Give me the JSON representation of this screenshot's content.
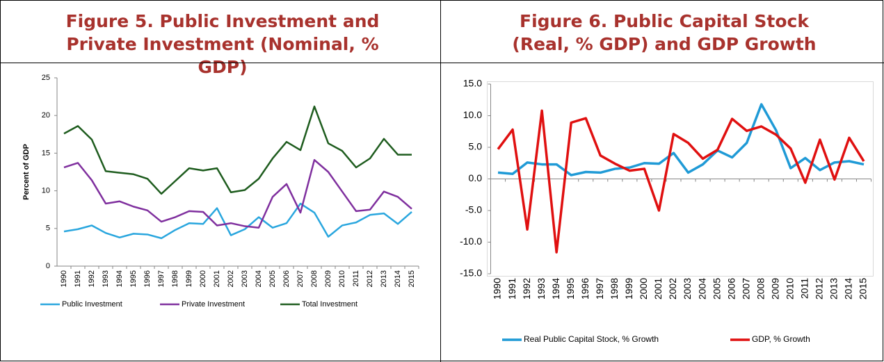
{
  "chart_data": [
    {
      "type": "line",
      "title": "Figure 5. Public Investment and Private Investment (Nominal, % GDP)",
      "ylabel": "Percent of GDP",
      "categories": [
        "1990",
        "1991",
        "1992",
        "1993",
        "1994",
        "1995",
        "1996",
        "1997",
        "1998",
        "1999",
        "2000",
        "2001",
        "2002",
        "2003",
        "2004",
        "2005",
        "2006",
        "2007",
        "2008",
        "2009",
        "2010",
        "2011",
        "2012",
        "2013",
        "2014",
        "2015"
      ],
      "ylim": [
        0,
        25
      ],
      "yticks": [
        0,
        5,
        10,
        15,
        20,
        25
      ],
      "grid": false,
      "legend": "bottom",
      "series": [
        {
          "name": "Public Investment",
          "color": "#29a6de",
          "values": [
            4.6,
            4.9,
            5.4,
            4.4,
            3.8,
            4.3,
            4.2,
            3.7,
            4.8,
            5.7,
            5.6,
            7.7,
            4.1,
            4.9,
            6.5,
            5.1,
            5.7,
            8.3,
            7.1,
            3.9,
            5.4,
            5.8,
            6.8,
            7.0,
            5.6,
            7.2
          ]
        },
        {
          "name": "Private Investment",
          "color": "#7f2f9e",
          "values": [
            13.1,
            13.7,
            11.4,
            8.3,
            8.6,
            7.9,
            7.4,
            5.9,
            6.5,
            7.3,
            7.2,
            5.4,
            5.7,
            5.3,
            5.1,
            9.2,
            10.9,
            7.1,
            14.1,
            12.5,
            9.9,
            7.3,
            7.5,
            9.9,
            9.2,
            7.6
          ]
        },
        {
          "name": "Total Investment",
          "color": "#1e5c1e",
          "values": [
            17.6,
            18.6,
            16.8,
            12.6,
            12.4,
            12.2,
            11.6,
            9.6,
            11.3,
            13.0,
            12.7,
            13.0,
            9.8,
            10.1,
            11.6,
            14.3,
            16.5,
            15.4,
            21.2,
            16.3,
            15.3,
            13.1,
            14.3,
            16.9,
            14.8,
            14.8
          ]
        }
      ]
    },
    {
      "type": "line",
      "title": "Figure 6. Public Capital Stock (Real, % GDP) and GDP Growth",
      "categories": [
        "1990",
        "1991",
        "1992",
        "1993",
        "1994",
        "1995",
        "1996",
        "1997",
        "1998",
        "1999",
        "2000",
        "2001",
        "2002",
        "2003",
        "2004",
        "2005",
        "2006",
        "2007",
        "2008",
        "2009",
        "2010",
        "2011",
        "2012",
        "2013",
        "2014",
        "2015"
      ],
      "ylim": [
        -15,
        15
      ],
      "yticks": [
        {
          "value": -15,
          "label": "-15.0"
        },
        {
          "value": -10,
          "label": "-10.0"
        },
        {
          "value": -5,
          "label": "-5.0"
        },
        {
          "value": 0,
          "label": "0.0"
        },
        {
          "value": 5,
          "label": "5.0"
        },
        {
          "value": 10,
          "label": "10.0"
        },
        {
          "value": 15,
          "label": "15.0"
        }
      ],
      "grid": false,
      "legend": "bottom",
      "series": [
        {
          "name": "Real Public Capital Stock, % Growth",
          "color": "#1f9ad6",
          "values": [
            1.0,
            0.8,
            2.6,
            2.3,
            2.3,
            0.6,
            1.1,
            1.0,
            1.6,
            1.8,
            2.5,
            2.4,
            4.1,
            1.0,
            2.3,
            4.5,
            3.4,
            5.7,
            11.8,
            7.7,
            1.7,
            3.3,
            1.4,
            2.6,
            2.8,
            2.3
          ]
        },
        {
          "name": "GDP, % Growth",
          "color": "#e01010",
          "values": [
            4.7,
            7.8,
            -8.0,
            10.8,
            -11.6,
            8.9,
            9.6,
            3.7,
            2.4,
            1.3,
            1.6,
            -5.0,
            7.1,
            5.7,
            3.2,
            4.6,
            9.5,
            7.6,
            8.3,
            7.0,
            4.8,
            -0.6,
            6.2,
            -0.1,
            6.5,
            2.8
          ]
        }
      ]
    }
  ]
}
